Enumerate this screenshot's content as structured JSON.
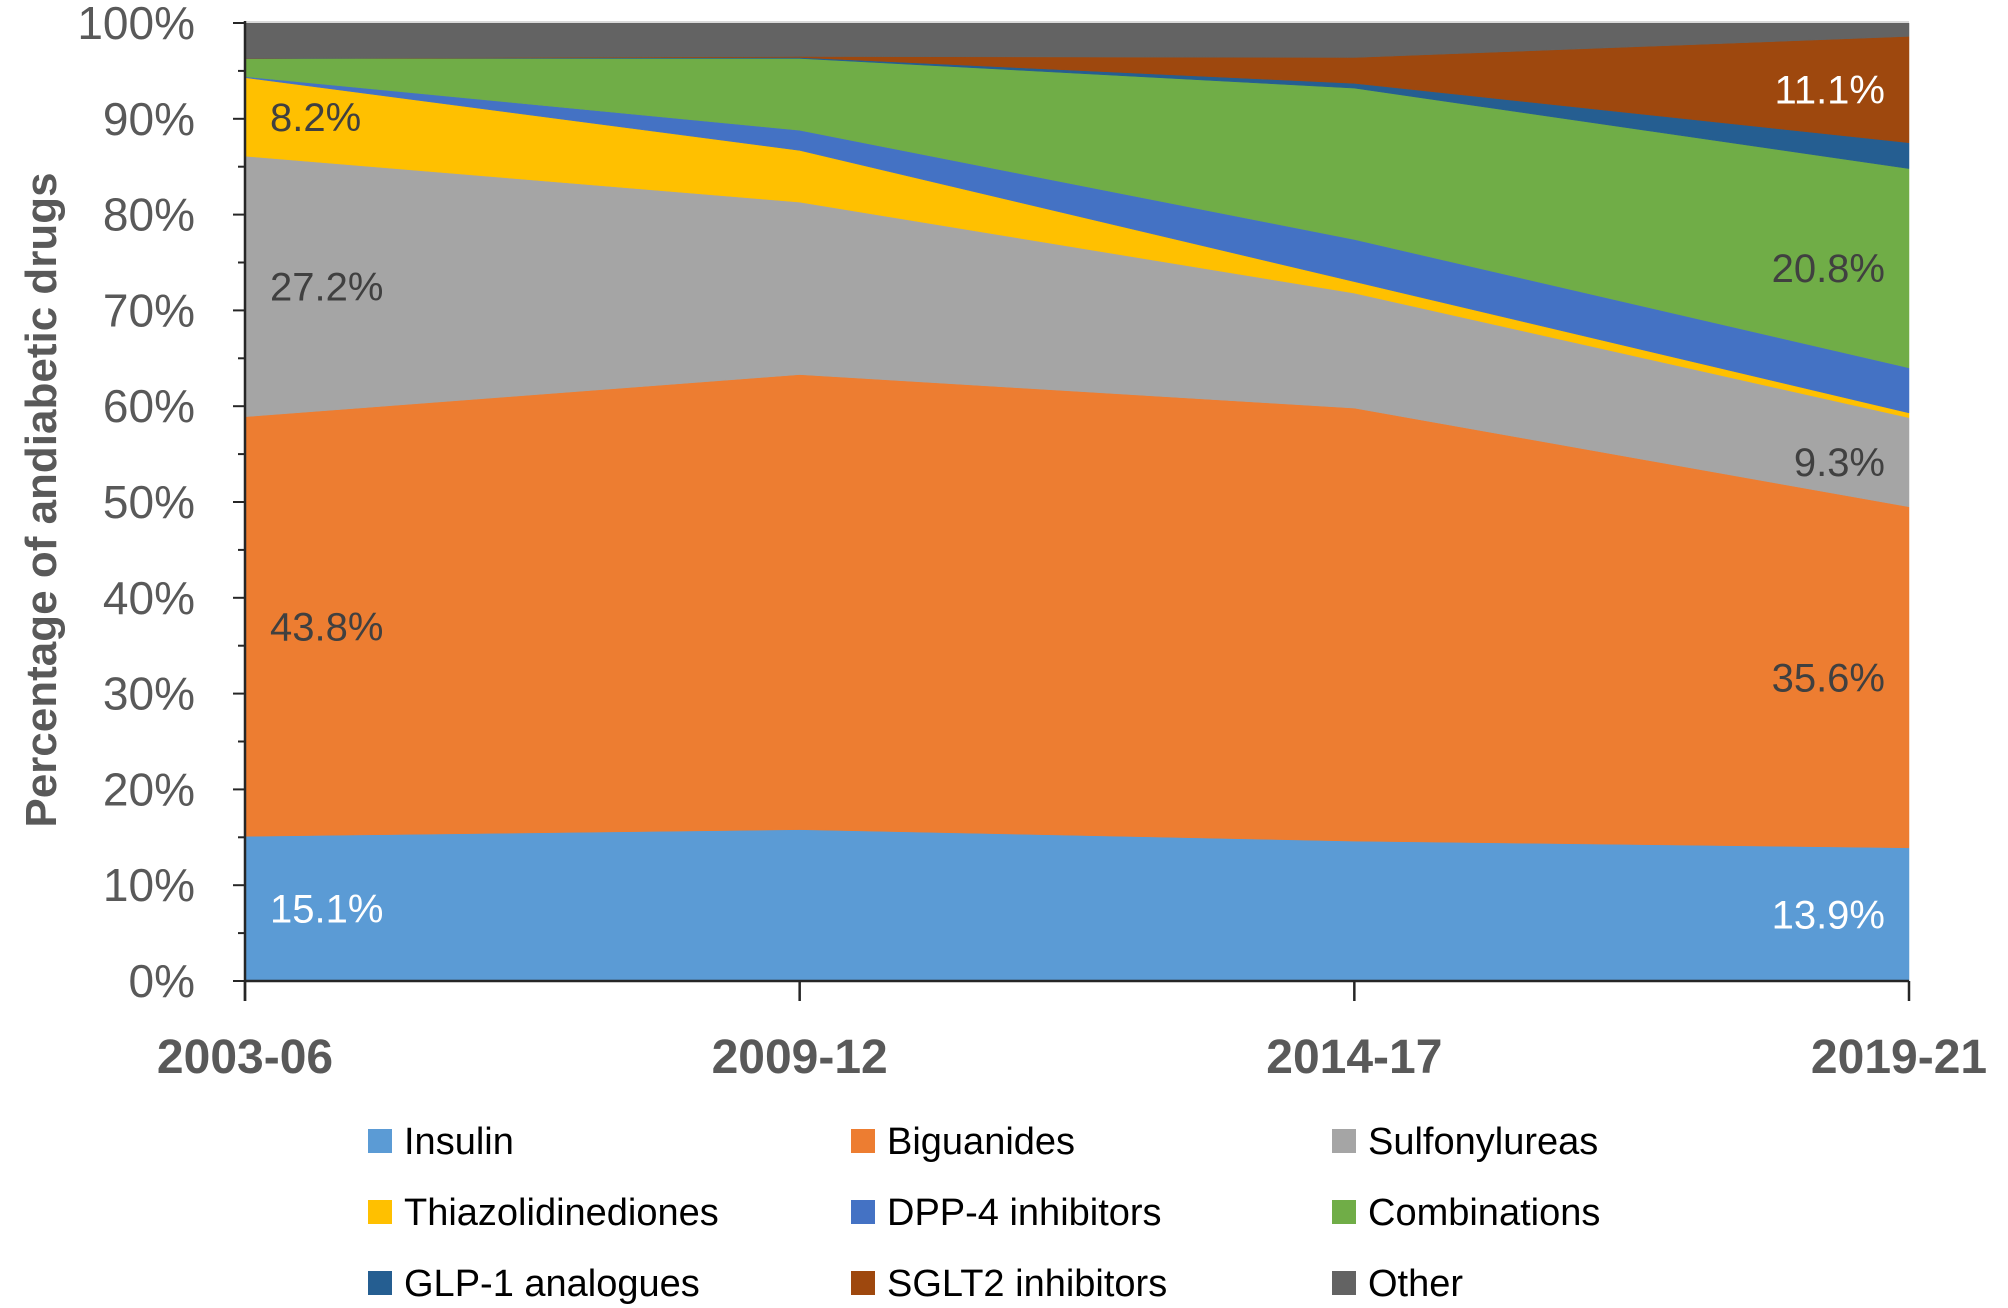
{
  "chart_data": {
    "type": "area",
    "stacked": true,
    "normalized": true,
    "title": "",
    "xlabel": "",
    "ylabel": "Percentage of andiabetic drugs",
    "ylim": [
      0,
      100
    ],
    "y_ticks": [
      "0%",
      "10%",
      "20%",
      "30%",
      "40%",
      "50%",
      "60%",
      "70%",
      "80%",
      "90%",
      "100%"
    ],
    "y_tick_values": [
      0,
      10,
      20,
      30,
      40,
      50,
      60,
      70,
      80,
      90,
      100
    ],
    "categories": [
      "2003-06",
      "2009-12",
      "2014-17",
      "2019-21"
    ],
    "grid": false,
    "legend_position": "bottom",
    "series": [
      {
        "name": "Insulin",
        "color": "#5B9BD5",
        "values": [
          15.1,
          15.8,
          14.6,
          13.9
        ]
      },
      {
        "name": "Biguanides",
        "color": "#ED7D31",
        "values": [
          43.8,
          47.5,
          45.2,
          35.6
        ]
      },
      {
        "name": "Sulfonylureas",
        "color": "#A5A5A5",
        "values": [
          27.2,
          18.0,
          12.0,
          9.3
        ]
      },
      {
        "name": "Thiazolidinediones",
        "color": "#FFC000",
        "values": [
          8.2,
          5.4,
          1.2,
          0.5
        ]
      },
      {
        "name": "DPP-4 inhibitors",
        "color": "#4472C4",
        "values": [
          0.1,
          2.1,
          4.4,
          4.7
        ]
      },
      {
        "name": "Combinations",
        "color": "#70AD47",
        "values": [
          1.9,
          7.5,
          15.8,
          20.8
        ]
      },
      {
        "name": "GLP-1 analogues",
        "color": "#255E91",
        "values": [
          0.0,
          0.1,
          0.5,
          2.7
        ]
      },
      {
        "name": "SGLT2 inhibitors",
        "color": "#9E480E",
        "values": [
          0.0,
          0.1,
          2.7,
          11.1
        ]
      },
      {
        "name": "Other",
        "color": "#636363",
        "values": [
          3.7,
          3.5,
          3.6,
          1.4
        ]
      }
    ],
    "annotations": [
      {
        "series": "Insulin",
        "category": "2003-06",
        "text": "15.1%",
        "color": "#FFFFFF"
      },
      {
        "series": "Biguanides",
        "category": "2003-06",
        "text": "43.8%",
        "color": "#404040"
      },
      {
        "series": "Sulfonylureas",
        "category": "2003-06",
        "text": "27.2%",
        "color": "#404040"
      },
      {
        "series": "Thiazolidinediones",
        "category": "2003-06",
        "text": "8.2%",
        "color": "#404040"
      },
      {
        "series": "Insulin",
        "category": "2019-21",
        "text": "13.9%",
        "color": "#FFFFFF"
      },
      {
        "series": "Biguanides",
        "category": "2019-21",
        "text": "35.6%",
        "color": "#404040"
      },
      {
        "series": "Sulfonylureas",
        "category": "2019-21",
        "text": "9.3%",
        "color": "#404040"
      },
      {
        "series": "Combinations",
        "category": "2019-21",
        "text": "20.8%",
        "color": "#404040"
      },
      {
        "series": "SGLT2 inhibitors",
        "category": "2019-21",
        "text": "11.1%",
        "color": "#FFFFFF"
      }
    ]
  }
}
